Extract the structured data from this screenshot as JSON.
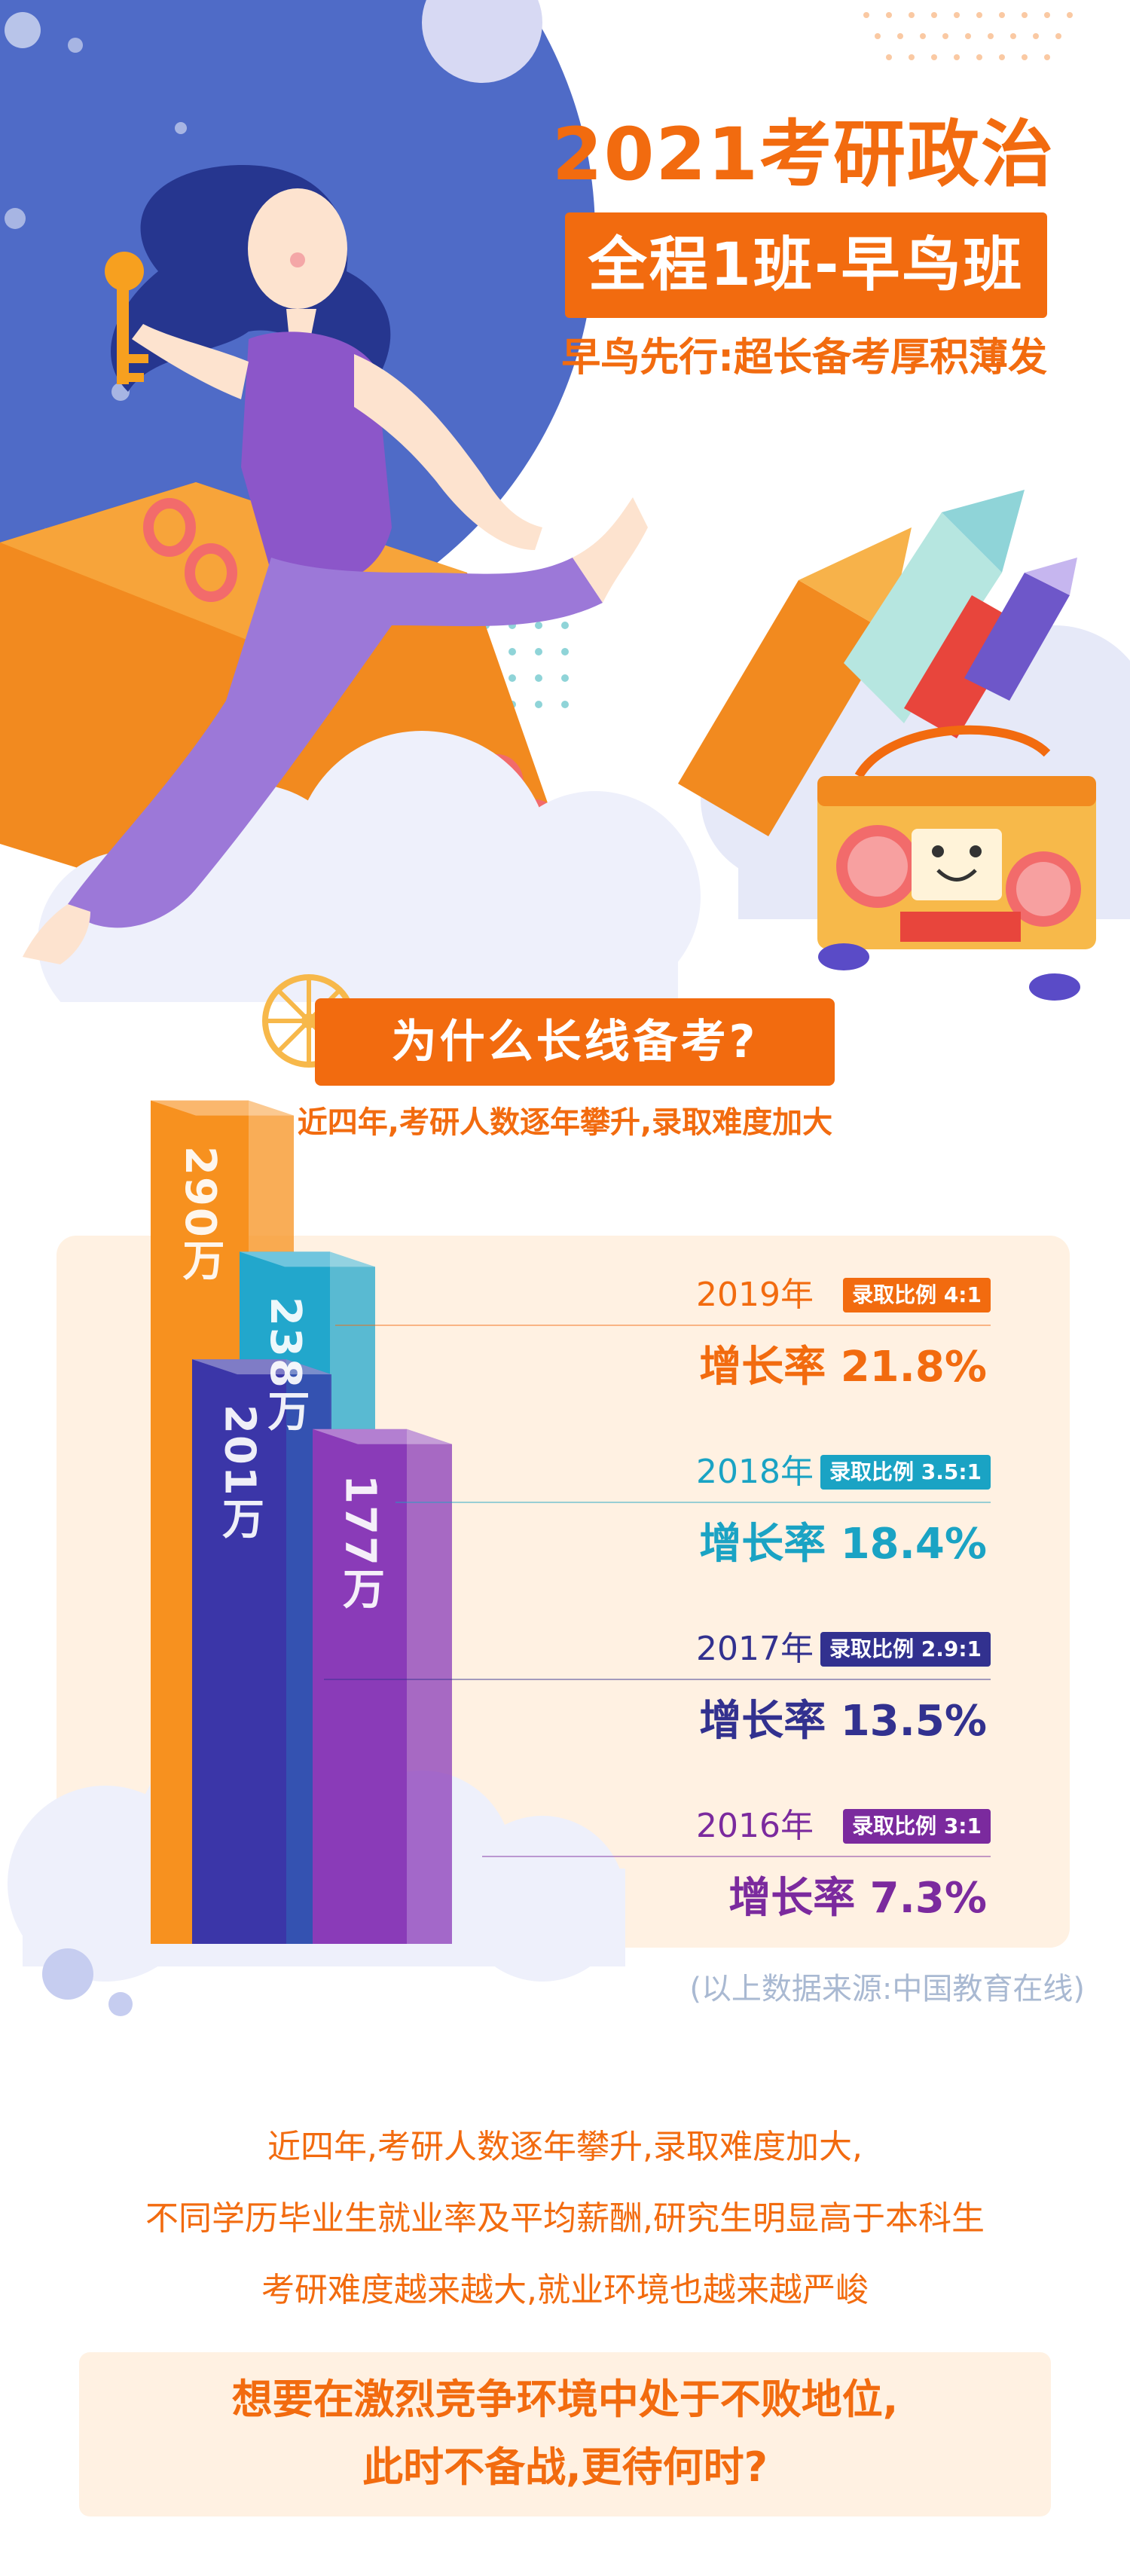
{
  "hero": {
    "title": "2021考研政治",
    "band": "全程1班-早鸟班",
    "subtitle": "早鸟先行:超长备考厚积薄发"
  },
  "question": {
    "title": "为什么长线备考?",
    "subtitle": "近四年,考研人数逐年攀升,录取难度加大"
  },
  "chart": {
    "rows": [
      {
        "year": "2019年",
        "badge": "录取比例 4:1",
        "rate": "增长率 21.8%",
        "color": "#f26b0f"
      },
      {
        "year": "2018年",
        "badge": "录取比例 3.5:1",
        "rate": "增长率 18.4%",
        "color": "#1aa3c4"
      },
      {
        "year": "2017年",
        "badge": "录取比例 2.9:1",
        "rate": "增长率 13.5%",
        "color": "#32318f"
      },
      {
        "year": "2016年",
        "badge": "录取比例 3:1",
        "rate": "增长率 7.3%",
        "color": "#7b2a9e"
      }
    ],
    "source": "(以上数据来源:中国教育在线)"
  },
  "chart_data": {
    "type": "bar",
    "categories": [
      "2019年",
      "2018年",
      "2017年",
      "2016年"
    ],
    "values": [
      290,
      238,
      201,
      177
    ],
    "value_labels": [
      "290万",
      "238万",
      "201万",
      "177万"
    ],
    "colors": [
      "#f7911f",
      "#22a7cc",
      "#3b36a8",
      "#8a3bb8"
    ]
  },
  "body": {
    "line1": "近四年,考研人数逐年攀升,录取难度加大,",
    "line2": "不同学历毕业生就业率及平均薪酬,研究生明显高于本科生",
    "line3": "考研难度越来越大,就业环境也越来越严峻",
    "cta1": "想要在激烈竞争环境中处于不败地位,",
    "cta2": "此时不备战,更待何时?"
  }
}
